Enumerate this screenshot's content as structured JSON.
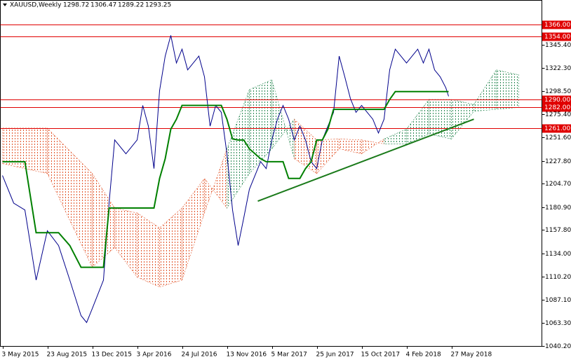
{
  "chart_data": {
    "type": "line",
    "title": "XAUUSD,Weekly",
    "quote": [
      1298.72,
      1306.47,
      1289.22,
      1293.25
    ],
    "xlim": [
      -0.75,
      192.25
    ],
    "ylim": [
      1040.2,
      1380.9
    ],
    "xticks": [
      {
        "value": 0,
        "label": "3 May 2015"
      },
      {
        "value": 16,
        "label": "23 Aug 2015"
      },
      {
        "value": 32,
        "label": "13 Dec 2015"
      },
      {
        "value": 48,
        "label": "3 Apr 2016"
      },
      {
        "value": 64,
        "label": "24 Jul 2016"
      },
      {
        "value": 80,
        "label": "13 Nov 2016"
      },
      {
        "value": 96,
        "label": "5 Mar 2017"
      },
      {
        "value": 112,
        "label": "25 Jun 2017"
      },
      {
        "value": 128,
        "label": "15 Oct 2017"
      },
      {
        "value": 144,
        "label": "4 Feb 2018"
      },
      {
        "value": 160,
        "label": "27 May 2018"
      }
    ],
    "yticks": [
      {
        "value": 1345.4,
        "label": "1345.40"
      },
      {
        "value": 1322.3,
        "label": "1322.30"
      },
      {
        "value": 1298.5,
        "label": "1298.50"
      },
      {
        "value": 1275.4,
        "label": "1275.40"
      },
      {
        "value": 1251.6,
        "label": "1251.60"
      },
      {
        "value": 1227.8,
        "label": "1227.80"
      },
      {
        "value": 1204.7,
        "label": "1204.70"
      },
      {
        "value": 1180.9,
        "label": "1180.90"
      },
      {
        "value": 1157.8,
        "label": "1157.80"
      },
      {
        "value": 1134,
        "label": "1134.00"
      },
      {
        "value": 1110.2,
        "label": "1110.20"
      },
      {
        "value": 1087.1,
        "label": "1087.10"
      },
      {
        "value": 1063.3,
        "label": "1063.30"
      },
      {
        "value": 1040.2,
        "label": "1040.20"
      }
    ],
    "x": [
      0,
      4,
      8,
      12,
      16,
      20,
      24,
      28,
      30,
      32,
      36,
      38,
      40,
      44,
      48,
      50,
      52,
      54,
      56,
      58,
      60,
      62,
      64,
      66,
      68,
      70,
      72,
      74,
      76,
      78,
      80,
      82,
      84,
      86,
      88,
      90,
      92,
      94,
      96,
      98,
      100,
      102,
      104,
      106,
      108,
      110,
      112,
      114,
      116,
      118,
      120,
      122,
      124,
      126,
      128,
      130,
      132,
      134,
      136,
      138,
      140,
      142,
      144,
      146,
      148,
      150,
      152,
      154,
      156,
      158,
      159
    ],
    "series": [
      {
        "color": "#00008b",
        "values": [
          1213,
          1185,
          1178,
          1107,
          1157,
          1142,
          1107,
          1071,
          1064,
          1078,
          1107,
          1185,
          1249,
          1235,
          1249,
          1284,
          1263,
          1220,
          1299,
          1334,
          1355,
          1327,
          1341,
          1320,
          1327,
          1334,
          1313,
          1263,
          1284,
          1277,
          1235,
          1178,
          1142,
          1170,
          1199,
          1213,
          1227,
          1220,
          1249,
          1270,
          1284,
          1270,
          1249,
          1263,
          1249,
          1227,
          1220,
          1249,
          1263,
          1277,
          1334,
          1313,
          1291,
          1277,
          1284,
          1277,
          1270,
          1256,
          1270,
          1320,
          1341,
          1334,
          1327,
          1334,
          1341,
          1327,
          1341,
          1320,
          1313,
          1302,
          1293.25
        ]
      },
      {
        "color": "#008000",
        "values": [
          1227,
          1227,
          1227,
          1155,
          1155,
          1155,
          1142,
          1120,
          1120,
          1120,
          1120,
          1180,
          1180,
          1180,
          1180,
          1180,
          1180,
          1180,
          1210,
          1230,
          1260,
          1270,
          1284,
          1284,
          1284,
          1284,
          1284,
          1284,
          1284,
          1284,
          1270,
          1250,
          1249,
          1249,
          1240,
          1235,
          1230,
          1227,
          1227,
          1227,
          1227,
          1210,
          1210,
          1210,
          1220,
          1227,
          1249,
          1249,
          1260,
          1280,
          1280,
          1280,
          1280,
          1280,
          1280,
          1280,
          1280,
          1280,
          1280,
          1290,
          1298,
          1298,
          1298,
          1298,
          1298,
          1298,
          1298,
          1298,
          1298,
          1298,
          1298
        ]
      }
    ],
    "cloud": {
      "x": [
        0,
        16,
        32,
        40,
        48,
        56,
        64,
        72,
        80,
        88,
        96,
        104,
        112,
        120,
        128,
        136,
        144,
        152,
        160,
        168,
        176,
        184
      ],
      "span_a": [
        1225,
        1215,
        1120,
        1140,
        1110,
        1100,
        1107,
        1175,
        1240,
        1300,
        1310,
        1230,
        1215,
        1240,
        1235,
        1250,
        1260,
        1290,
        1290,
        1285,
        1320,
        1315
      ],
      "span_b": [
        1261,
        1261,
        1215,
        1180,
        1175,
        1160,
        1180,
        1210,
        1180,
        1215,
        1240,
        1270,
        1249,
        1250,
        1249,
        1245,
        1245,
        1255,
        1250,
        1278,
        1280,
        1282
      ],
      "colors": [
        "#2e8b57",
        "#e2552a"
      ]
    },
    "trendline": {
      "x": [
        91,
        168
      ],
      "values": [
        1187,
        1270
      ],
      "color": "#1a7a1a"
    },
    "levels": {
      "color": "#e00000",
      "values": [
        {
          "value": 1366,
          "label": "1366.00"
        },
        {
          "value": 1354,
          "label": "1354.00"
        },
        {
          "value": 1290,
          "label": "1290.00"
        },
        {
          "value": 1282,
          "label": "1282.00"
        },
        {
          "value": 1261,
          "label": "1261.00"
        }
      ]
    }
  }
}
